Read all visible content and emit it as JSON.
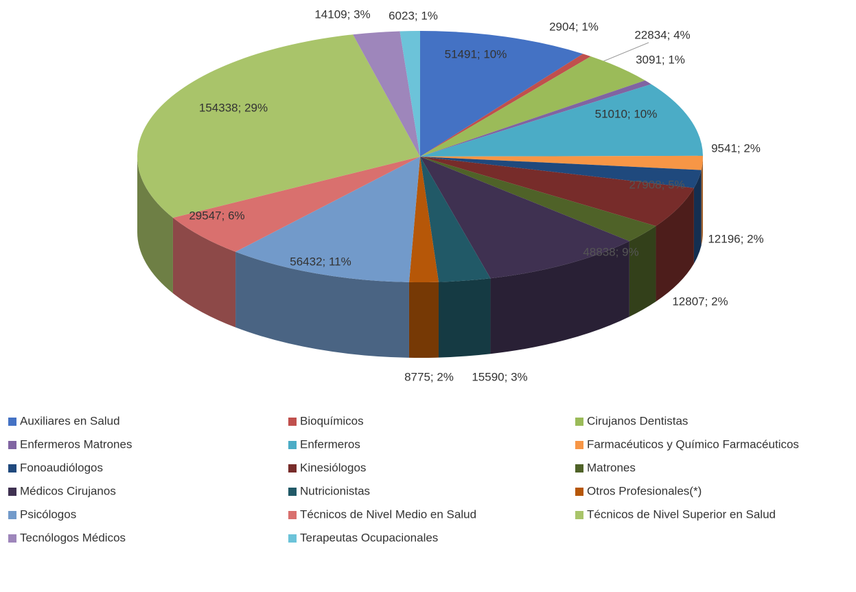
{
  "chart_data": {
    "type": "pie3d",
    "categories": [
      "Auxiliares en Salud",
      "Bioquímicos",
      "Cirujanos Dentistas",
      "Enfermeros Matrones",
      "Enfermeros",
      "Farmacéuticos y Químico Farmacéuticos",
      "Fonoaudiólogos",
      "Kinesiólogos",
      "Matrones",
      "Médicos Cirujanos",
      "Nutricionistas",
      "Otros Profesionales(*)",
      "Psicólogos",
      "Técnicos de Nivel Medio en Salud",
      "Técnicos de Nivel Superior en Salud",
      "Tecnólogos Médicos",
      "Terapeutas Ocupacionales"
    ],
    "values": [
      51491,
      2904,
      22834,
      3091,
      51010,
      9541,
      12196,
      27908,
      12807,
      48838,
      15590,
      8775,
      56432,
      29547,
      154338,
      14109,
      6023
    ],
    "value_labels": [
      "51491; 10%",
      "2904; 1%",
      "22834; 4%",
      "3091; 1%",
      "51010; 10%",
      "9541; 2%",
      "12196; 2%",
      "27908; 5%",
      "12807; 2%",
      "48838; 9%",
      "15590; 3%",
      "8775; 2%",
      "56432; 11%",
      "29547; 6%",
      "154338; 29%",
      "14109; 3%",
      "6023; 1%"
    ],
    "colors": [
      "#4472c4",
      "#c0504d",
      "#9bbb59",
      "#8064a2",
      "#4bacc6",
      "#f79646",
      "#1f497d",
      "#772c2a",
      "#4f6228",
      "#3f3151",
      "#215967",
      "#b65708",
      "#729aca",
      "#d9706e",
      "#a9c46a",
      "#9e86bb",
      "#6cc3d9"
    ],
    "legend": "bottom"
  }
}
